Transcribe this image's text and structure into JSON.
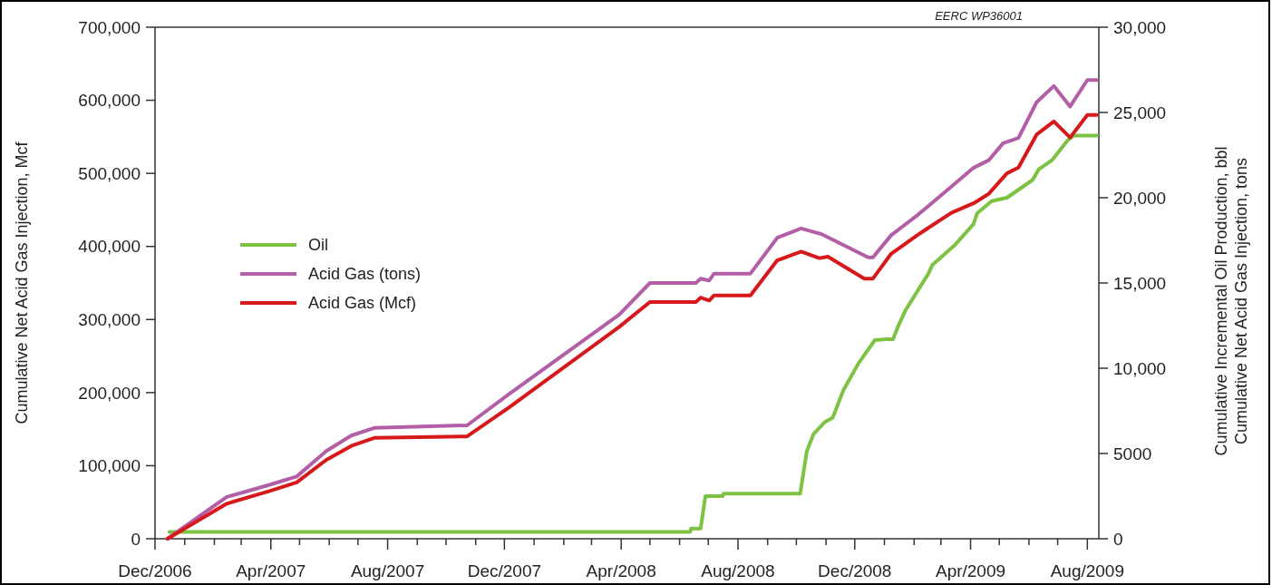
{
  "chart_data": {
    "type": "line",
    "xlabel": null,
    "ylabel": "Cumulative Net Acid Gas Injection, Mcf",
    "y2label": "Cumulative Incremental Oil Production, bbl\nCumulative Net Acid Gas Injection, tons",
    "annotations": [
      "EERC WP36001"
    ],
    "legend": "left",
    "grid": false,
    "marker": "none",
    "line_style": "solid",
    "xlim": [
      "2006-12-01",
      "2009-08-13"
    ],
    "xticks": [
      {
        "value": "2006-12",
        "label": "Dec/2006"
      },
      {
        "value": "2007-01",
        "label": null
      },
      {
        "value": "2007-02",
        "label": null
      },
      {
        "value": "2007-03",
        "label": null
      },
      {
        "value": "2007-04",
        "label": "Apr/2007"
      },
      {
        "value": "2007-05",
        "label": null
      },
      {
        "value": "2007-06",
        "label": null
      },
      {
        "value": "2007-07",
        "label": null
      },
      {
        "value": "2007-08",
        "label": "Aug/2007"
      },
      {
        "value": "2007-09",
        "label": null
      },
      {
        "value": "2007-10",
        "label": null
      },
      {
        "value": "2007-11",
        "label": null
      },
      {
        "value": "2007-12",
        "label": "Dec/2007"
      },
      {
        "value": "2008-01",
        "label": null
      },
      {
        "value": "2008-02",
        "label": null
      },
      {
        "value": "2008-03",
        "label": null
      },
      {
        "value": "2008-04",
        "label": "Apr/2008"
      },
      {
        "value": "2008-05",
        "label": null
      },
      {
        "value": "2008-06",
        "label": null
      },
      {
        "value": "2008-07",
        "label": null
      },
      {
        "value": "2008-08",
        "label": "Aug/2008"
      },
      {
        "value": "2008-09",
        "label": null
      },
      {
        "value": "2008-10",
        "label": null
      },
      {
        "value": "2008-11",
        "label": null
      },
      {
        "value": "2008-12",
        "label": "Dec/2008"
      },
      {
        "value": "2009-01",
        "label": null
      },
      {
        "value": "2009-02",
        "label": null
      },
      {
        "value": "2009-03",
        "label": null
      },
      {
        "value": "2009-04",
        "label": "Apr/2009"
      },
      {
        "value": "2009-05",
        "label": null
      },
      {
        "value": "2009-06",
        "label": null
      },
      {
        "value": "2009-07",
        "label": null
      },
      {
        "value": "2009-08",
        "label": "Aug/2009"
      }
    ],
    "ylim": [
      0,
      700000
    ],
    "yticks": [
      0,
      {
        "value": 100000,
        "label": "100,000"
      },
      {
        "value": 200000,
        "label": "200,000"
      },
      {
        "value": 300000,
        "label": "300,000"
      },
      {
        "value": 400000,
        "label": "400,000"
      },
      {
        "value": 500000,
        "label": "500,000"
      },
      {
        "value": 600000,
        "label": "600,000"
      },
      {
        "value": 700000,
        "label": "700,000"
      }
    ],
    "y2lim": [
      0,
      30000
    ],
    "y2ticks": [
      0,
      5000,
      {
        "value": 10000,
        "label": "10,000"
      },
      {
        "value": 15000,
        "label": "15,000"
      },
      {
        "value": 20000,
        "label": "20,000"
      },
      {
        "value": 25000,
        "label": "25,000"
      },
      {
        "value": 30000,
        "label": "30,000"
      }
    ],
    "series": [
      {
        "name": "Oil",
        "color": "#7dc242",
        "axis": "y2",
        "x": [
          "2006-12-16",
          "2008-06-12",
          "2008-06-13",
          "2008-06-23",
          "2008-06-28",
          "2008-07-16",
          "2008-07-17",
          "2008-10-05",
          "2008-10-12",
          "2008-10-19",
          "2008-10-31",
          "2008-11-08",
          "2008-11-19",
          "2008-12-05",
          "2008-12-22",
          "2009-01-03",
          "2009-01-10",
          "2009-01-16",
          "2009-01-23",
          "2009-02-16",
          "2009-02-20",
          "2009-03-16",
          "2009-04-04",
          "2009-04-08",
          "2009-04-23",
          "2009-05-09",
          "2009-06-05",
          "2009-06-11",
          "2009-06-25",
          "2009-07-12",
          "2009-07-18",
          "2009-08-11"
        ],
        "values": [
          400,
          400,
          600,
          600,
          2500,
          2500,
          2650,
          2650,
          5150,
          6150,
          6850,
          7100,
          8700,
          10300,
          11650,
          11700,
          11700,
          12550,
          13400,
          15550,
          16050,
          17250,
          18450,
          19100,
          19800,
          20000,
          21050,
          21650,
          22200,
          23400,
          23650,
          23650
        ]
      },
      {
        "name": "Acid Gas (tons)",
        "color": "#b35fa8",
        "axis": "y2",
        "x": [
          "2006-12-14",
          "2007-02-14",
          "2007-03-30",
          "2007-04-28",
          "2007-05-29",
          "2007-06-24",
          "2007-07-18",
          "2007-10-23",
          "2007-12-05",
          "2008-03-30",
          "2008-05-01",
          "2008-06-18",
          "2008-06-23",
          "2008-07-02",
          "2008-07-07",
          "2008-08-14",
          "2008-09-11",
          "2008-10-06",
          "2008-10-28",
          "2008-12-15",
          "2008-12-20",
          "2009-01-08",
          "2009-02-05",
          "2009-03-12",
          "2009-04-04",
          "2009-04-20",
          "2009-05-05",
          "2009-05-21",
          "2009-06-09",
          "2009-06-27",
          "2009-07-14",
          "2009-08-01",
          "2009-08-11"
        ],
        "values": [
          0,
          2450,
          3150,
          3650,
          5150,
          6050,
          6500,
          6650,
          8450,
          13150,
          15000,
          15000,
          15250,
          15150,
          15550,
          15550,
          17650,
          18200,
          17850,
          16500,
          16500,
          17800,
          19000,
          20650,
          21750,
          22200,
          23200,
          23500,
          25600,
          26550,
          25350,
          26900,
          26900
        ]
      },
      {
        "name": "Acid Gas (Mcf)",
        "color": "#d7191c",
        "x": [
          "2006-12-14",
          "2007-02-14",
          "2007-03-30",
          "2007-04-28",
          "2007-05-29",
          "2007-06-24",
          "2007-07-18",
          "2007-10-23",
          "2007-12-05",
          "2008-03-30",
          "2008-05-01",
          "2008-06-18",
          "2008-06-23",
          "2008-07-02",
          "2008-07-07",
          "2008-08-14",
          "2008-09-11",
          "2008-10-06",
          "2008-10-25",
          "2008-11-03",
          "2008-12-11",
          "2008-12-20",
          "2009-01-08",
          "2009-02-05",
          "2009-03-12",
          "2009-04-04",
          "2009-04-20",
          "2009-05-09",
          "2009-05-21",
          "2009-06-09",
          "2009-06-27",
          "2009-07-14",
          "2009-08-01",
          "2009-08-11"
        ],
        "values": [
          0,
          48000,
          65000,
          77000,
          108000,
          127000,
          138000,
          140000,
          179000,
          290000,
          324000,
          324000,
          330000,
          326000,
          333000,
          333000,
          381000,
          393000,
          384000,
          386000,
          356000,
          356000,
          390000,
          416000,
          446000,
          459000,
          472000,
          500000,
          508000,
          553000,
          571000,
          549000,
          580000,
          580000
        ]
      }
    ]
  }
}
